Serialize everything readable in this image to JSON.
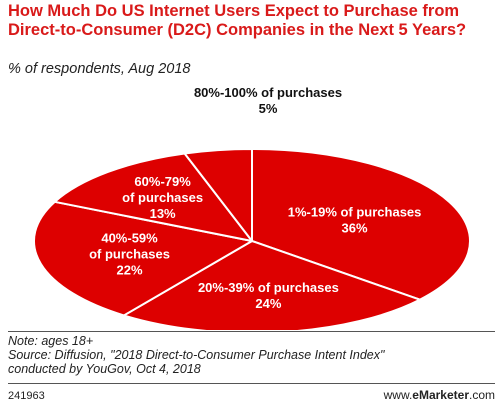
{
  "header": {
    "title": "How Much Do US Internet Users Expect to Purchase from Direct-to-Consumer (D2C) Companies in the Next 5 Years?",
    "subtitle": "% of respondents, Aug 2018"
  },
  "chart_data": {
    "type": "pie",
    "title": "How Much Do US Internet Users Expect to Purchase from Direct-to-Consumer (D2C) Companies in the Next 5 Years?",
    "subtitle": "% of respondents, Aug 2018",
    "unit": "%",
    "categories": [
      "1%-19% of purchases",
      "20%-39% of purchases",
      "40%-59% of purchases",
      "60%-79% of purchases",
      "80%-100% of purchases"
    ],
    "values": [
      36,
      24,
      22,
      13,
      5
    ],
    "value_labels": [
      "36%",
      "24%",
      "22%",
      "13%",
      "5%"
    ],
    "slice_color": "#dd0000",
    "edge_color": "#ffffff"
  },
  "footer": {
    "note": "Note: ages 18+",
    "source_line1": "Source: Diffusion, \"2018 Direct-to-Consumer Purchase Intent Index\"",
    "source_line2": "conducted by YouGov, Oct 4, 2018",
    "chart_id": "241963",
    "brand_prefix": "www.",
    "brand_name": "eMarketer",
    "brand_suffix": ".com"
  }
}
